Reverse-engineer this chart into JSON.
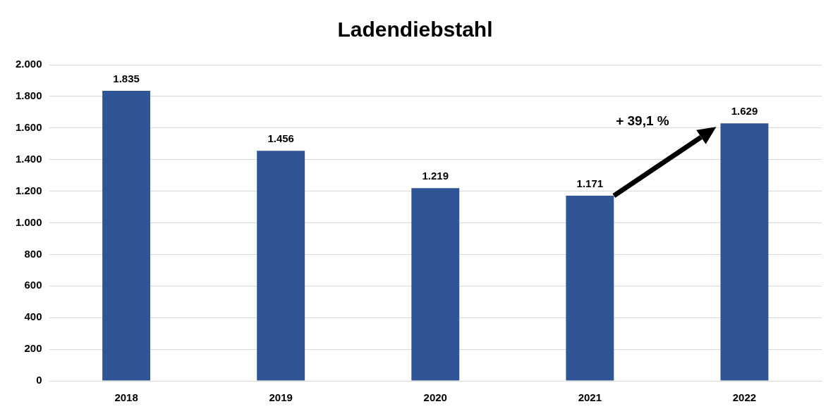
{
  "chart_data": {
    "type": "bar",
    "title": "Ladendiebstahl",
    "categories": [
      "2018",
      "2019",
      "2020",
      "2021",
      "2022"
    ],
    "values": [
      1835,
      1456,
      1219,
      1171,
      1629
    ],
    "color": "#2f5597",
    "value_labels": [
      "1.835",
      "1.456",
      "1.219",
      "1.171",
      "1.629"
    ],
    "ylim": [
      0,
      2000
    ],
    "yticks": [
      {
        "value": 0,
        "label": "0"
      },
      {
        "value": 200,
        "label": "200"
      },
      {
        "value": 400,
        "label": "400"
      },
      {
        "value": 600,
        "label": "600"
      },
      {
        "value": 800,
        "label": "800"
      },
      {
        "value": 1000,
        "label": "1.000"
      },
      {
        "value": 1200,
        "label": "1.200"
      },
      {
        "value": 1400,
        "label": "1.400"
      },
      {
        "value": 1600,
        "label": "1.600"
      },
      {
        "value": 1800,
        "label": "1.800"
      },
      {
        "value": 2000,
        "label": "2.000"
      }
    ],
    "grid": "y",
    "legend": false,
    "annotations": [
      "+ 39,1 %"
    ]
  }
}
